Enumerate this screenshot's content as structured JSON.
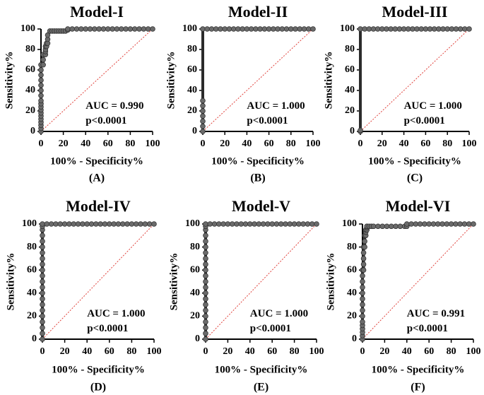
{
  "chart_data": [
    {
      "type": "line",
      "panel": "(A)",
      "title": "Model-I",
      "xlabel": "100% - Specificity%",
      "ylabel": "Sensitivity%",
      "xlim": [
        0,
        100
      ],
      "ylim": [
        0,
        100
      ],
      "xticks": [
        0,
        20,
        40,
        60,
        80,
        100
      ],
      "yticks": [
        0,
        20,
        40,
        60,
        80,
        100
      ],
      "auc_text": "AUC = 0.990",
      "p_text": "p<0.0001",
      "series": [
        {
          "name": "ROC",
          "x": [
            0,
            0,
            0,
            0,
            0,
            0,
            0,
            0,
            0,
            0,
            0,
            0,
            0,
            0,
            0,
            0,
            0,
            0,
            2,
            2,
            2,
            4,
            4,
            4,
            4,
            5,
            5,
            6,
            6,
            6,
            8,
            10,
            12,
            14,
            16,
            18,
            20,
            22,
            24,
            24,
            28,
            32,
            36,
            40,
            44,
            48,
            52,
            56,
            60,
            64,
            68,
            72,
            76,
            80,
            84,
            88,
            92,
            96,
            100
          ],
          "y": [
            0,
            3,
            6,
            9,
            12,
            15,
            18,
            21,
            24,
            27,
            30,
            35,
            40,
            45,
            50,
            55,
            60,
            65,
            65,
            70,
            75,
            75,
            78,
            80,
            83,
            83,
            86,
            86,
            90,
            94,
            98,
            98,
            98,
            98,
            98,
            98,
            98,
            98,
            99,
            100,
            100,
            100,
            100,
            100,
            100,
            100,
            100,
            100,
            100,
            100,
            100,
            100,
            100,
            100,
            100,
            100,
            100,
            100,
            100
          ]
        },
        {
          "name": "Reference",
          "x": [
            0,
            100
          ],
          "y": [
            0,
            100
          ]
        }
      ]
    },
    {
      "type": "line",
      "panel": "(B)",
      "title": "Model-II",
      "xlabel": "100% - Specificity%",
      "ylabel": "Sensitivity%",
      "xlim": [
        0,
        100
      ],
      "ylim": [
        0,
        100
      ],
      "xticks": [
        0,
        20,
        40,
        60,
        80,
        100
      ],
      "yticks": [
        0,
        20,
        40,
        60,
        80,
        100
      ],
      "auc_text": "AUC = 1.000",
      "p_text": "p<0.0001",
      "series": [
        {
          "name": "ROC",
          "x": [
            0,
            0,
            0,
            0,
            0,
            0,
            0,
            0,
            4,
            8,
            12,
            16,
            20,
            24,
            28,
            32,
            36,
            40,
            44,
            48,
            52,
            56,
            60,
            64,
            68,
            72,
            76,
            80,
            84,
            88,
            92,
            96,
            100
          ],
          "y": [
            0,
            5,
            10,
            15,
            20,
            25,
            30,
            100,
            100,
            100,
            100,
            100,
            100,
            100,
            100,
            100,
            100,
            100,
            100,
            100,
            100,
            100,
            100,
            100,
            100,
            100,
            100,
            100,
            100,
            100,
            100,
            100,
            100
          ]
        },
        {
          "name": "Reference",
          "x": [
            0,
            100
          ],
          "y": [
            0,
            100
          ]
        }
      ]
    },
    {
      "type": "line",
      "panel": "(C)",
      "title": "Model-III",
      "xlabel": "100% - Specificity%",
      "ylabel": "Sensitivity%",
      "xlim": [
        0,
        100
      ],
      "ylim": [
        0,
        100
      ],
      "xticks": [
        0,
        20,
        40,
        60,
        80,
        100
      ],
      "yticks": [
        0,
        20,
        40,
        60,
        80,
        100
      ],
      "auc_text": "AUC = 1.000",
      "p_text": "p<0.0001",
      "series": [
        {
          "name": "ROC",
          "x": [
            0,
            0,
            0,
            4,
            8,
            12,
            16,
            20,
            24,
            28,
            32,
            36,
            40,
            44,
            48,
            52,
            56,
            60,
            64,
            68,
            72,
            76,
            80,
            84,
            88,
            92,
            96,
            100
          ],
          "y": [
            0,
            1,
            100,
            100,
            100,
            100,
            100,
            100,
            100,
            100,
            100,
            100,
            100,
            100,
            100,
            100,
            100,
            100,
            100,
            100,
            100,
            100,
            100,
            100,
            100,
            100,
            100,
            100
          ]
        },
        {
          "name": "Reference",
          "x": [
            0,
            100
          ],
          "y": [
            0,
            100
          ]
        }
      ]
    },
    {
      "type": "line",
      "panel": "(D)",
      "title": "Model-IV",
      "xlabel": "100% - Specificity%",
      "ylabel": "Sensitivity%",
      "xlim": [
        0,
        100
      ],
      "ylim": [
        0,
        100
      ],
      "xticks": [
        0,
        20,
        40,
        60,
        80,
        100
      ],
      "yticks": [
        0,
        20,
        40,
        60,
        80,
        100
      ],
      "auc_text": "AUC = 1.000",
      "p_text": "p<0.0001",
      "series": [
        {
          "name": "ROC",
          "x": [
            0,
            0,
            0,
            0,
            0,
            0,
            0,
            0,
            0,
            0,
            0,
            0,
            0,
            0,
            0,
            0,
            0,
            0,
            0,
            0,
            0,
            0,
            4,
            8,
            12,
            16,
            20,
            24,
            28,
            32,
            36,
            40,
            44,
            48,
            52,
            56,
            60,
            64,
            68,
            72,
            76,
            80,
            84,
            88,
            92,
            96,
            100
          ],
          "y": [
            0,
            5,
            10,
            15,
            20,
            25,
            30,
            35,
            40,
            45,
            50,
            55,
            60,
            65,
            70,
            75,
            80,
            85,
            90,
            95,
            98,
            100,
            100,
            100,
            100,
            100,
            100,
            100,
            100,
            100,
            100,
            100,
            100,
            100,
            100,
            100,
            100,
            100,
            100,
            100,
            100,
            100,
            100,
            100,
            100,
            100,
            100
          ]
        },
        {
          "name": "Reference",
          "x": [
            0,
            100
          ],
          "y": [
            0,
            100
          ]
        }
      ]
    },
    {
      "type": "line",
      "panel": "(E)",
      "title": "Model-V",
      "xlabel": "100% - Specificity%",
      "ylabel": "Sensitivity%",
      "xlim": [
        0,
        100
      ],
      "ylim": [
        0,
        100
      ],
      "xticks": [
        0,
        20,
        40,
        60,
        80,
        100
      ],
      "yticks": [
        0,
        20,
        40,
        60,
        80,
        100
      ],
      "auc_text": "AUC = 1.000",
      "p_text": "p<0.0001",
      "series": [
        {
          "name": "ROC",
          "x": [
            0,
            0,
            0,
            0,
            0,
            0,
            0,
            0,
            0,
            0,
            0,
            0,
            0,
            0,
            0,
            0,
            0,
            0,
            0,
            0,
            0,
            0,
            4,
            8,
            12,
            16,
            20,
            24,
            28,
            32,
            36,
            40,
            44,
            48,
            52,
            56,
            60,
            64,
            68,
            72,
            76,
            80,
            84,
            88,
            92,
            96,
            100
          ],
          "y": [
            0,
            5,
            10,
            15,
            20,
            25,
            30,
            35,
            40,
            45,
            50,
            55,
            60,
            65,
            70,
            75,
            80,
            85,
            90,
            95,
            98,
            100,
            100,
            100,
            100,
            100,
            100,
            100,
            100,
            100,
            100,
            100,
            100,
            100,
            100,
            100,
            100,
            100,
            100,
            100,
            100,
            100,
            100,
            100,
            100,
            100,
            100
          ]
        },
        {
          "name": "Reference",
          "x": [
            0,
            100
          ],
          "y": [
            0,
            100
          ]
        }
      ]
    },
    {
      "type": "line",
      "panel": "(F)",
      "title": "Model-VI",
      "xlabel": "100% - Specificity%",
      "ylabel": "Sensitivity%",
      "xlim": [
        0,
        100
      ],
      "ylim": [
        0,
        100
      ],
      "xticks": [
        0,
        20,
        40,
        60,
        80,
        100
      ],
      "yticks": [
        0,
        20,
        40,
        60,
        80,
        100
      ],
      "auc_text": "AUC = 0.991",
      "p_text": "p<0.0001",
      "series": [
        {
          "name": "ROC",
          "x": [
            0,
            0,
            0,
            0,
            0,
            0,
            0,
            0,
            0,
            0,
            0,
            0,
            0,
            0,
            0,
            1,
            1,
            1,
            1,
            1,
            2,
            2,
            2,
            3,
            3,
            3,
            4,
            4,
            4,
            4,
            6,
            8,
            10,
            14,
            18,
            22,
            26,
            30,
            34,
            38,
            40,
            40,
            44,
            48,
            52,
            56,
            60,
            64,
            68,
            72,
            76,
            80,
            84,
            88,
            92,
            96,
            100
          ],
          "y": [
            0,
            3,
            6,
            9,
            12,
            15,
            20,
            25,
            30,
            35,
            40,
            45,
            50,
            55,
            60,
            60,
            65,
            70,
            75,
            80,
            80,
            85,
            90,
            90,
            93,
            95,
            95,
            97,
            98,
            98,
            98,
            98,
            98,
            98,
            98,
            98,
            98,
            98,
            98,
            98,
            98,
            100,
            100,
            100,
            100,
            100,
            100,
            100,
            100,
            100,
            100,
            100,
            100,
            100,
            100,
            100,
            100
          ]
        },
        {
          "name": "Reference",
          "x": [
            0,
            100
          ],
          "y": [
            0,
            100
          ]
        }
      ]
    }
  ]
}
